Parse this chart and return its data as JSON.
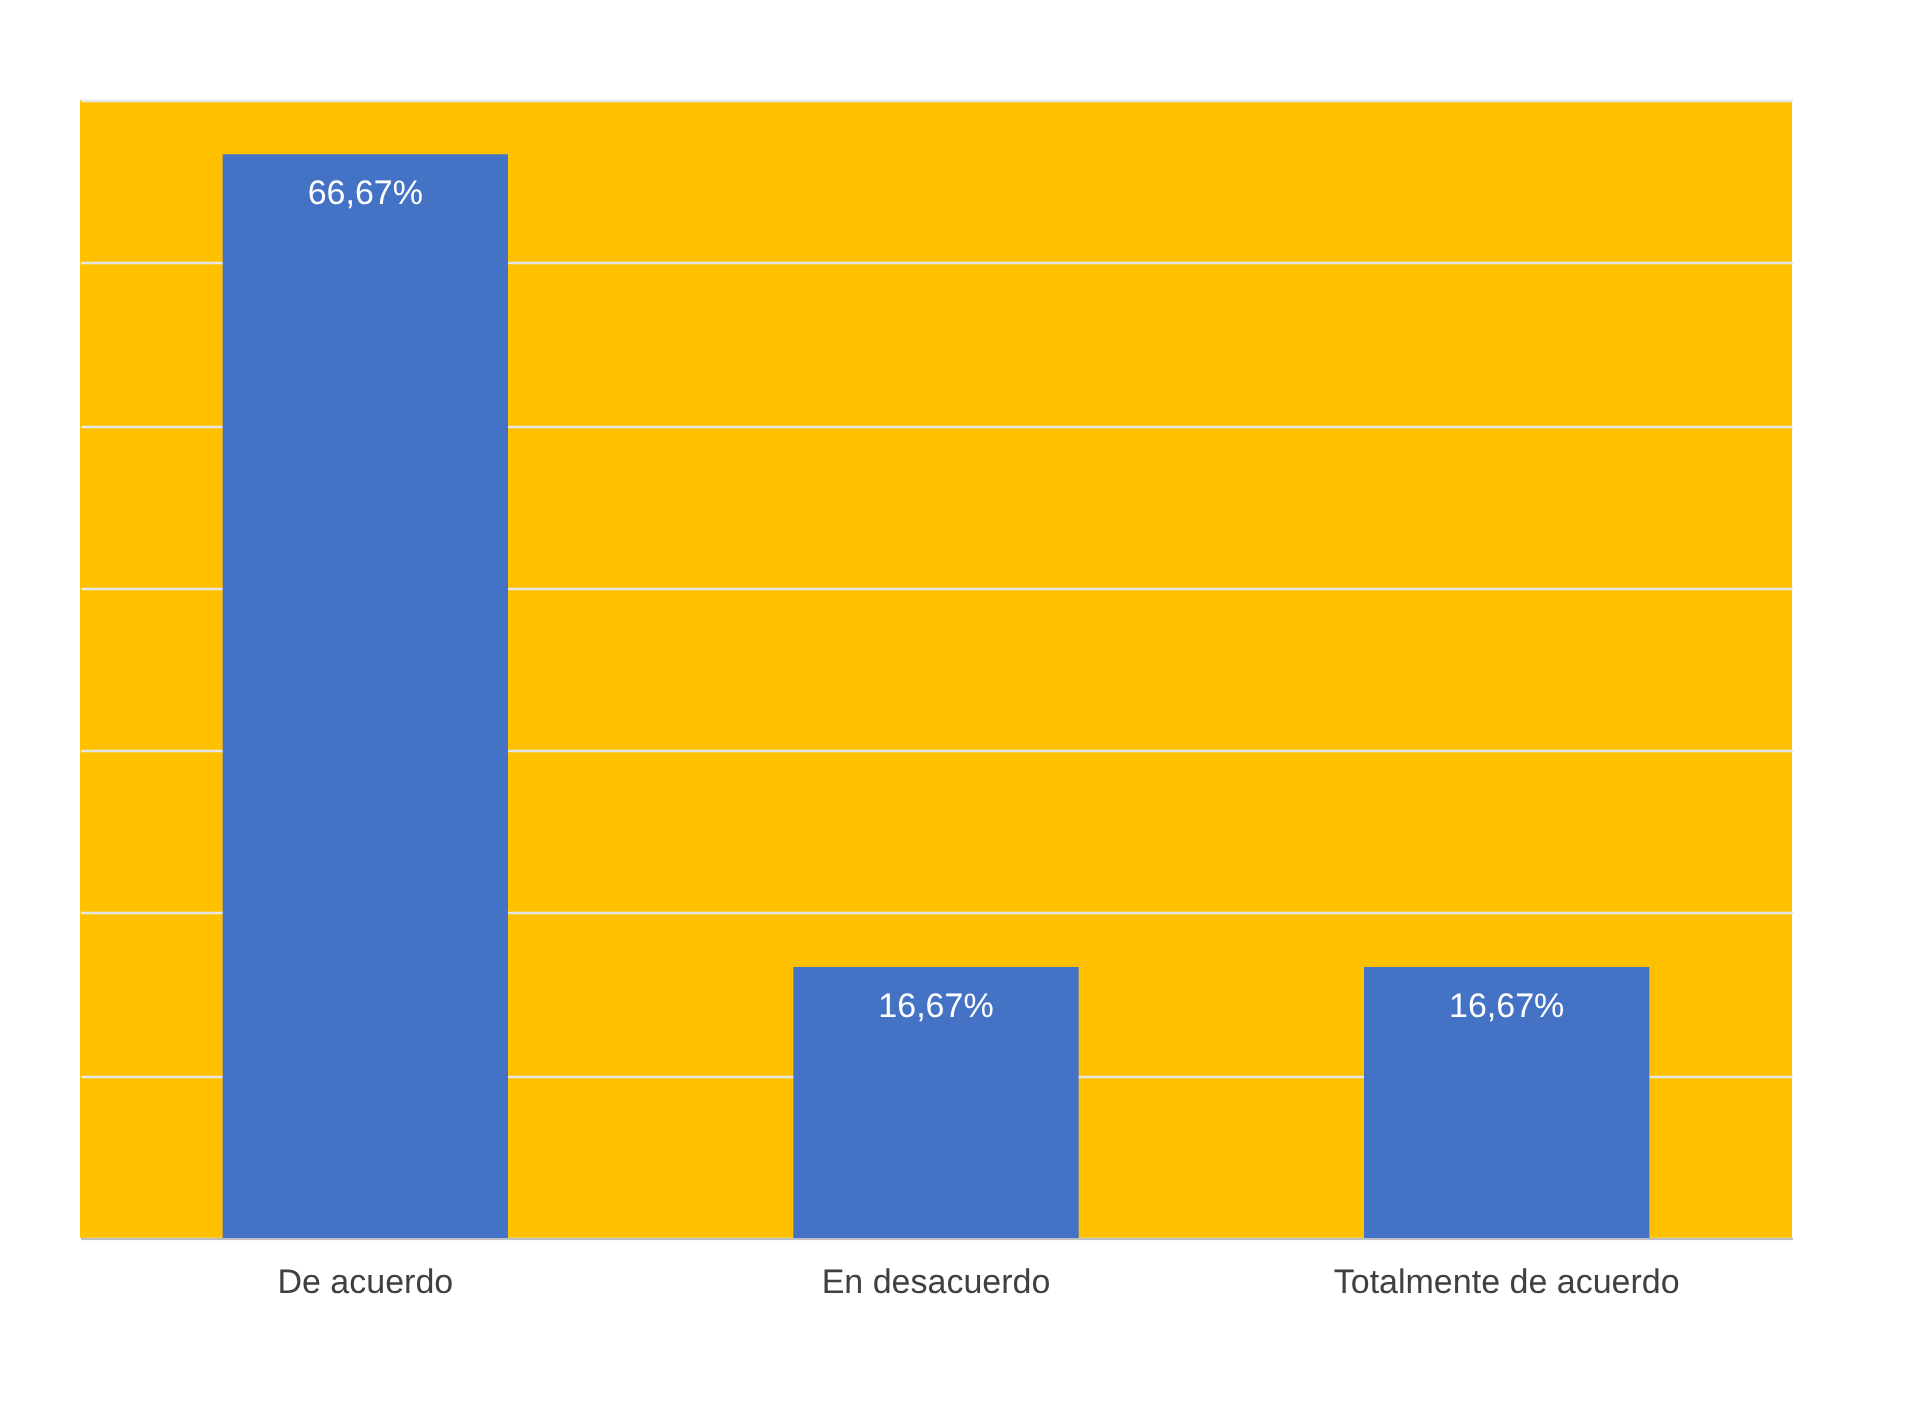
{
  "chart_data": {
    "type": "bar",
    "categories": [
      "De acuerdo",
      "En desacuerdo",
      "Totalmente de acuerdo"
    ],
    "values": [
      66.67,
      16.67,
      16.67
    ],
    "value_labels": [
      "66,67%",
      "16,67%",
      "16,67%"
    ],
    "color": "#4472c4",
    "ylim": [
      0,
      70
    ],
    "yticks": [
      0,
      10,
      20,
      30,
      40,
      50,
      60,
      70
    ],
    "grid": "y",
    "tick_labels": "x"
  }
}
